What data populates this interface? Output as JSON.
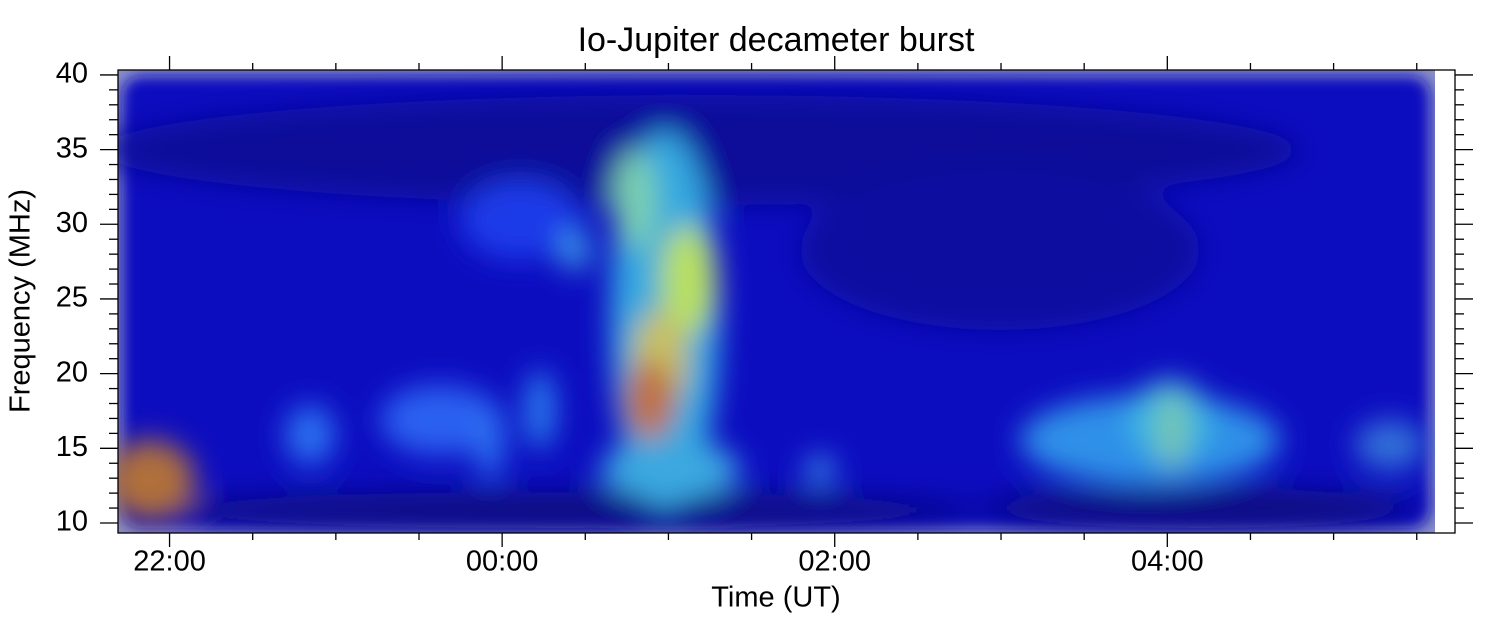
{
  "chart_data": {
    "type": "spectrogram",
    "title": "Io-Jupiter decameter burst",
    "x_label": "Time (UT)",
    "y_label": "Frequency (MHz)",
    "xlim": [
      21.69,
      29.73
    ],
    "xticks": [
      {
        "value": 22,
        "label": "22:00"
      },
      {
        "value": 24,
        "label": "00:00"
      },
      {
        "value": 26,
        "label": "02:00"
      },
      {
        "value": 28,
        "label": "04:00"
      }
    ],
    "xminorticks": [
      22.5,
      23,
      23.5,
      24.5,
      25,
      25.5,
      26.5,
      27,
      27.5,
      28.5,
      29,
      29.5
    ],
    "ylim": [
      9.33,
      40.33
    ],
    "yticks": [
      10,
      15,
      20,
      25,
      30,
      35,
      40
    ],
    "yminorticks": [
      11,
      12,
      13,
      14,
      16,
      17,
      18,
      19,
      21,
      22,
      23,
      24,
      26,
      27,
      28,
      29,
      31,
      32,
      33,
      34,
      36,
      37,
      38,
      39
    ]
  }
}
